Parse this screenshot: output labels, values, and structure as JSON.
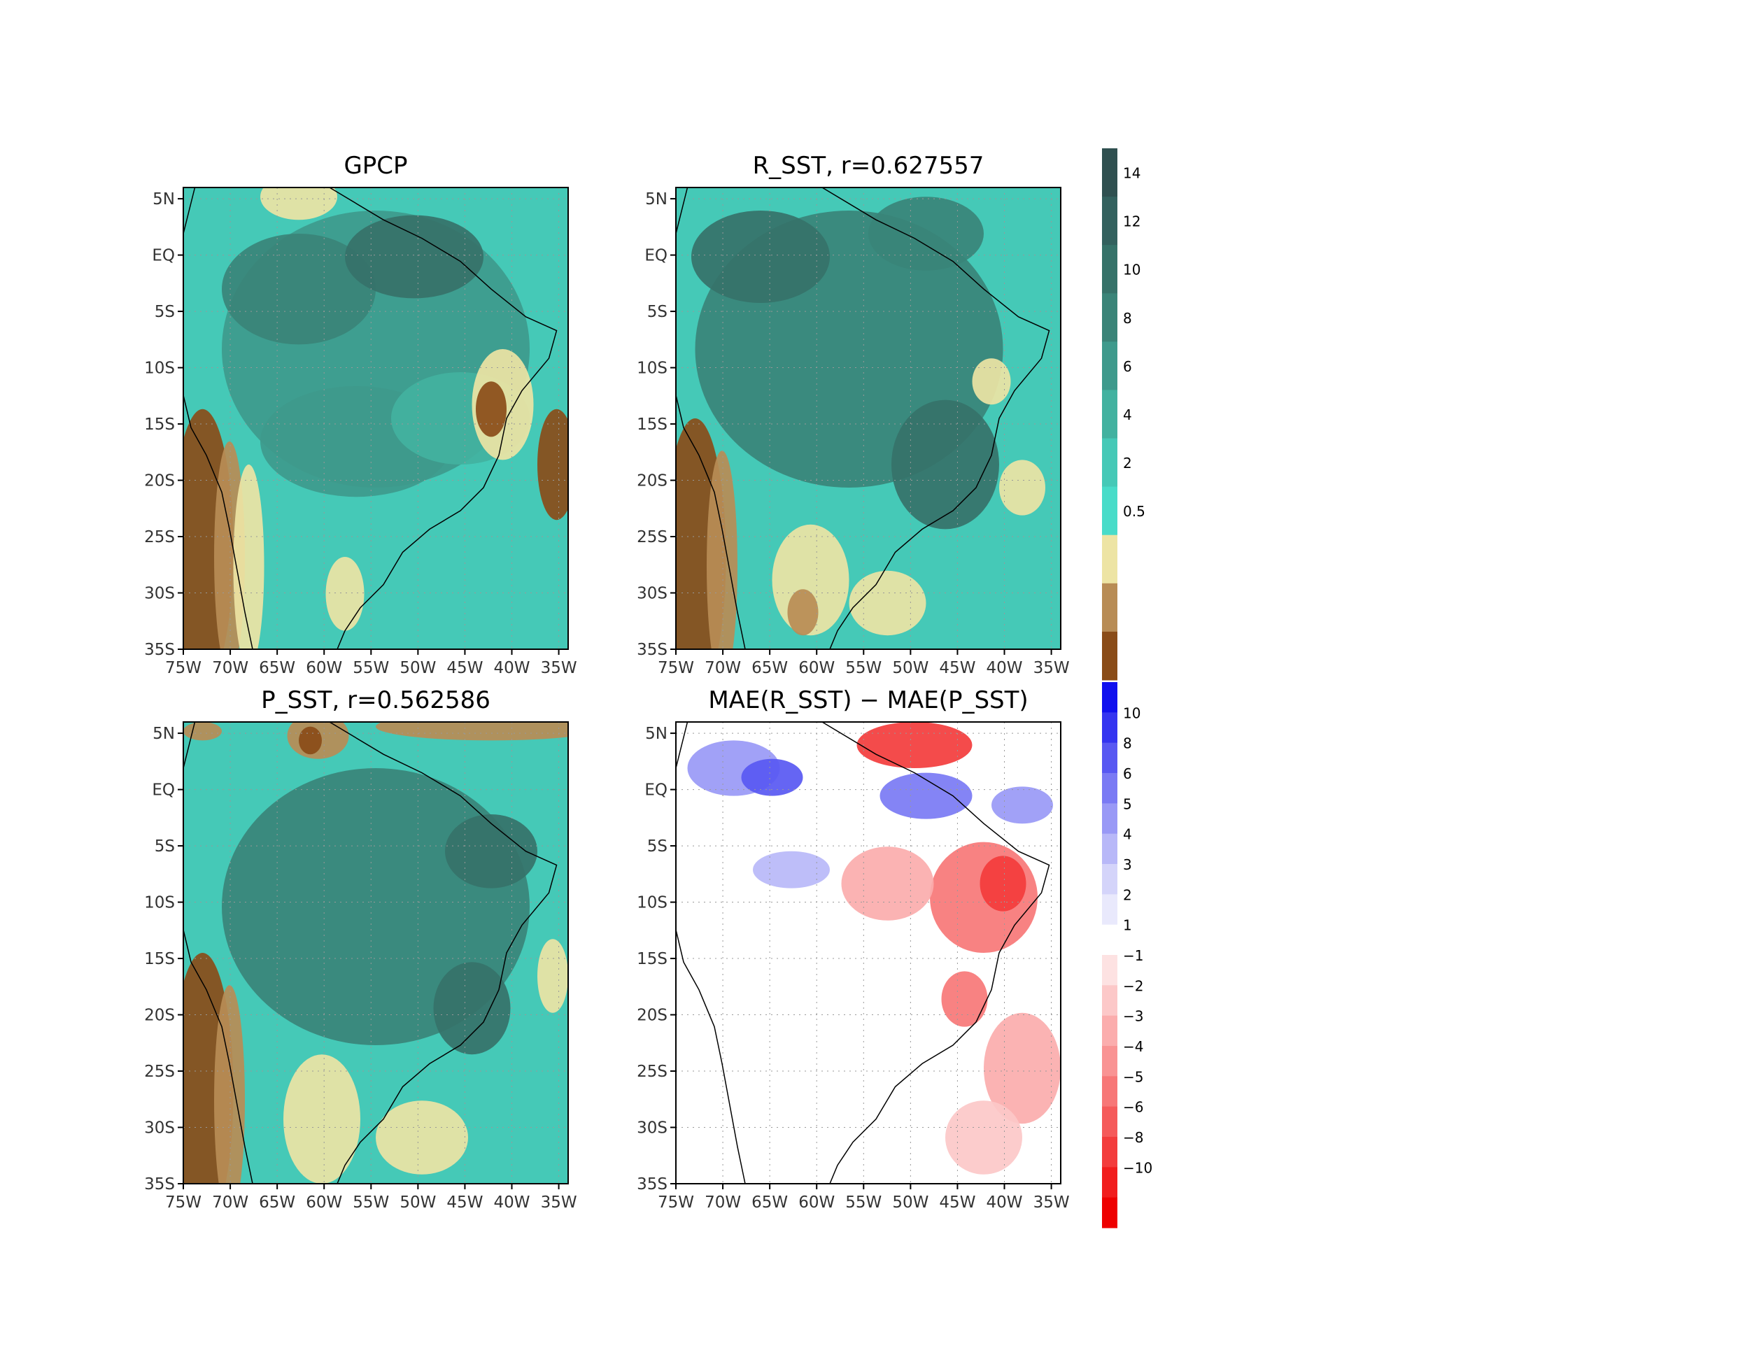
{
  "panels": [
    {
      "id": "gpcp",
      "title": "GPCP",
      "field": "gpcp"
    },
    {
      "id": "r-sst",
      "title": "R_SST, r=0.627557",
      "field": "rsst"
    },
    {
      "id": "p-sst",
      "title": "P_SST, r=0.562586",
      "field": "psst"
    },
    {
      "id": "mae-diff",
      "title": "MAE(R_SST) − MAE(P_SST)",
      "field": "diff"
    }
  ],
  "axes": {
    "lat_labels": [
      "5N",
      "EQ",
      "5S",
      "10S",
      "15S",
      "20S",
      "25S",
      "30S",
      "35S"
    ],
    "lat_values": [
      5,
      0,
      -5,
      -10,
      -15,
      -20,
      -25,
      -30,
      -35
    ],
    "lon_labels": [
      "75W",
      "70W",
      "65W",
      "60W",
      "55W",
      "50W",
      "45W",
      "40W",
      "35W"
    ],
    "lon_values": [
      -75,
      -70,
      -65,
      -60,
      -55,
      -50,
      -45,
      -40,
      -35
    ],
    "lon_range": [
      -75,
      -34
    ],
    "lat_range": [
      -35,
      6
    ],
    "grid": "dotted"
  },
  "colorbar_precip": {
    "labels": [
      "14",
      "12",
      "10",
      "8",
      "6",
      "4",
      "2",
      "0.5"
    ],
    "colors": [
      "#2f5050",
      "#33615e",
      "#367269",
      "#3a8478",
      "#3e9a8c",
      "#42b2a0",
      "#45c9b7",
      "#48dcc9",
      "#ede4a4",
      "#b88c55",
      "#8a4c18"
    ]
  },
  "colorbar_diff": {
    "labels": [
      "10",
      "8",
      "6",
      "5",
      "4",
      "3",
      "2",
      "1",
      "−1",
      "−2",
      "−3",
      "−4",
      "−5",
      "−6",
      "−8",
      "−10"
    ],
    "colors": [
      "#1010ee",
      "#3434f0",
      "#5858f2",
      "#7a7af4",
      "#9999f6",
      "#b8b8f8",
      "#d4d4fa",
      "#e9e9fc",
      "#ffffff",
      "#fde2e2",
      "#fcc8c8",
      "#fbadad",
      "#f99393",
      "#f77777",
      "#f55a5a",
      "#f33c3c",
      "#f11d1d",
      "#ee0000"
    ]
  }
}
